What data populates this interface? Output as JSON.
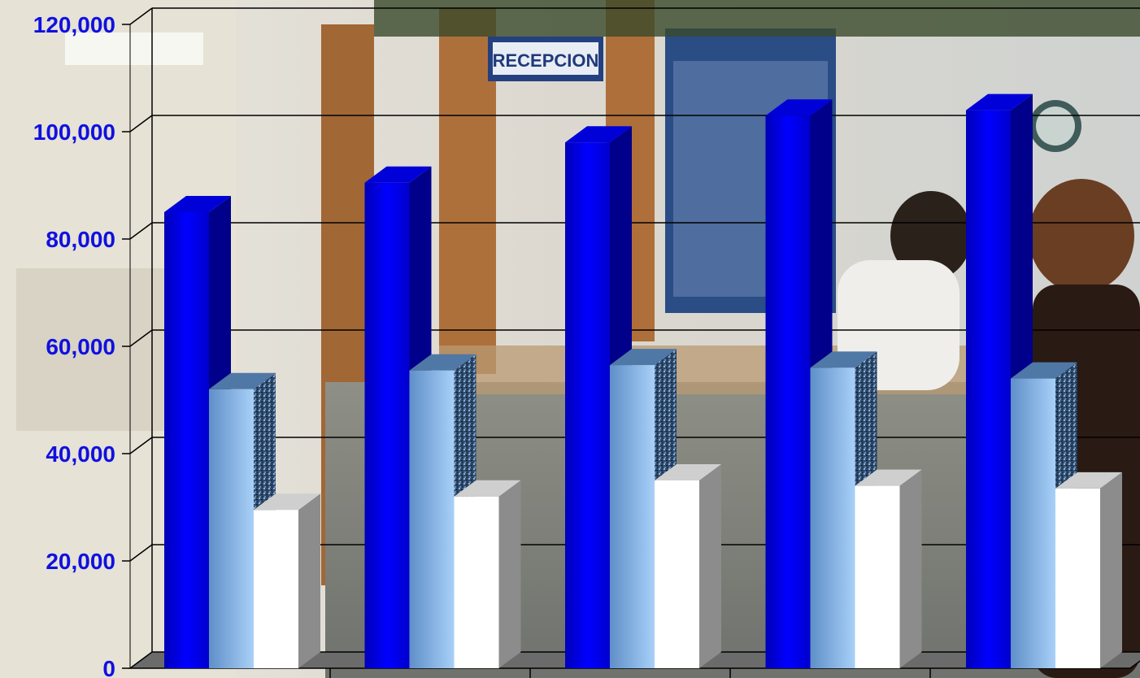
{
  "chart_data": {
    "type": "bar",
    "title": "",
    "xlabel": "",
    "ylabel": "",
    "categories": [
      "",
      "",
      "",
      "",
      ""
    ],
    "series": [
      {
        "values": [
          85000,
          90500,
          98000,
          103000,
          104000
        ],
        "color": "#0000e6"
      },
      {
        "values": [
          52000,
          55500,
          56500,
          56000,
          54000
        ],
        "color": "#7fb0e8"
      },
      {
        "values": [
          29500,
          32000,
          35000,
          34000,
          33500
        ],
        "color": "#ffffff"
      }
    ],
    "ylim": [
      0,
      120000
    ],
    "yticks": [
      "0",
      "20,000",
      "40,000",
      "60,000",
      "80,000",
      "100,000",
      "120,000"
    ],
    "grid": true,
    "style": "3d-clustered-column",
    "background": "photo of clinic reception area"
  }
}
